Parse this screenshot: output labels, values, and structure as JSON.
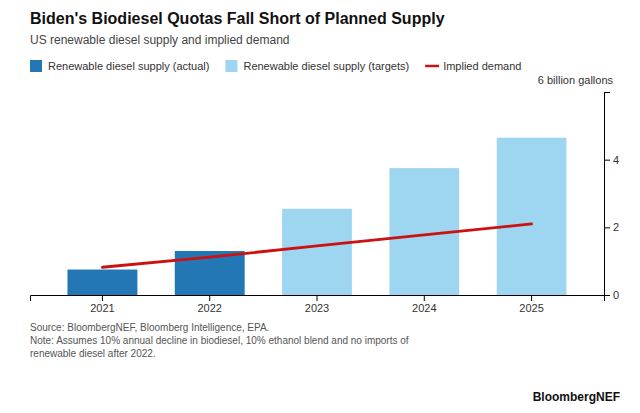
{
  "chart_data": {
    "type": "bar",
    "title": "Biden's Biodiesel Quotas Fall Short of Planned Supply",
    "subtitle": "US renewable diesel supply and implied demand",
    "categories": [
      "2021",
      "2022",
      "2023",
      "2024",
      "2025"
    ],
    "series": [
      {
        "name": "Renewable diesel supply (actual)",
        "type": "bar",
        "color": "#2377b4",
        "values": [
          0.75,
          1.3,
          null,
          null,
          null
        ]
      },
      {
        "name": "Renewable diesel supply (targets)",
        "type": "bar",
        "color": "#9ed5f0",
        "values": [
          0.75,
          1.3,
          2.55,
          3.75,
          4.65
        ]
      },
      {
        "name": "Implied demand",
        "type": "line",
        "color": "#cc1111",
        "values": [
          0.82,
          1.12,
          1.45,
          1.78,
          2.1
        ]
      }
    ],
    "ylim": [
      0,
      6
    ],
    "yticks": [
      0,
      2,
      4,
      {
        "value": 6,
        "label": "6 billion gallons"
      }
    ],
    "grid": false,
    "legend": "top",
    "annotations": [
      "Source: BloombergNEF, Bloomberg Intelligence, EPA.\nNote: Assumes 10% annual decline in biodiesel, 10% ethanol blend and no imports of\nrenewable diesel after 2022.",
      "BloombergNEF"
    ]
  }
}
